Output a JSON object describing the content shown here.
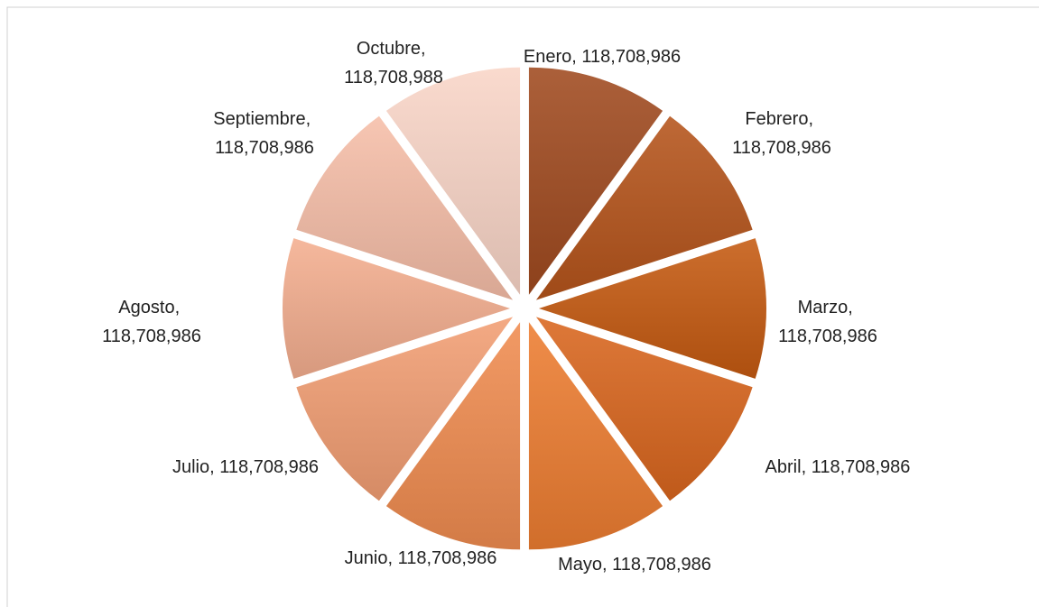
{
  "chart_data": {
    "type": "pie",
    "categories": [
      "Enero",
      "Febrero",
      "Marzo",
      "Abril",
      "Mayo",
      "Junio",
      "Julio",
      "Agosto",
      "Septiembre",
      "Octubre"
    ],
    "values": [
      118708986,
      118708986,
      118708986,
      118708986,
      118708986,
      118708986,
      118708986,
      118708986,
      118708986,
      118708988
    ],
    "value_labels": [
      "118,708,986",
      "118,708,986",
      "118,708,986",
      "118,708,986",
      "118,708,986",
      "118,708,986",
      "118,708,986",
      "118,708,986",
      "118,708,986",
      "118,708,988"
    ],
    "data_label_separator": ", ",
    "colors": [
      "#a04a1f",
      "#b5541b",
      "#c55a11",
      "#d9661e",
      "#ed7d31",
      "#f08c50",
      "#f29e73",
      "#f4ae8f",
      "#f6bea8",
      "#f9d5c7"
    ],
    "exploded": true
  }
}
